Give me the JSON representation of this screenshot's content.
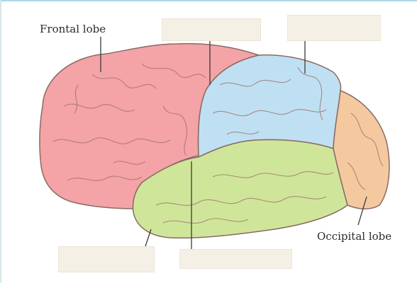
{
  "labels": {
    "frontal": "Frontal lobe",
    "occipital": "Occipital lobe"
  },
  "blanks": [
    {
      "name": "blank-label-parietal-top"
    },
    {
      "name": "blank-label-parietal-upper-right"
    },
    {
      "name": "blank-label-temporal-bottom-left"
    },
    {
      "name": "blank-label-bottom-center"
    }
  ],
  "colors": {
    "frontal": "#f4a3a6",
    "parietal": "#bfe0f2",
    "temporal": "#cfe69a",
    "occipital": "#f4c9a0",
    "outline": "#8a6a63"
  }
}
